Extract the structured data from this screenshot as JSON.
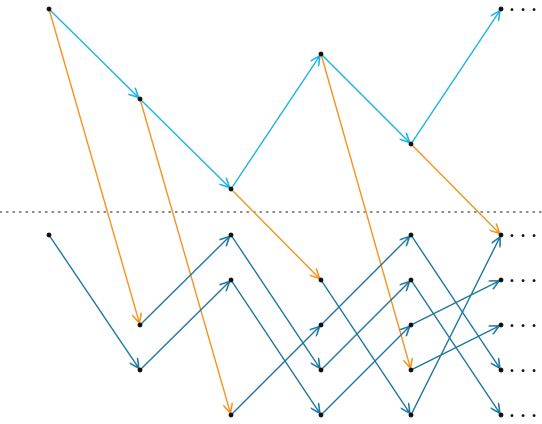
{
  "colors": {
    "upper_edge": "#1ab3e6",
    "lower_edge": "#1f78a0",
    "cross_edge": "#f5921e",
    "node": "#111111",
    "separator": "#666666"
  },
  "continuation_mark": "• • •"
}
